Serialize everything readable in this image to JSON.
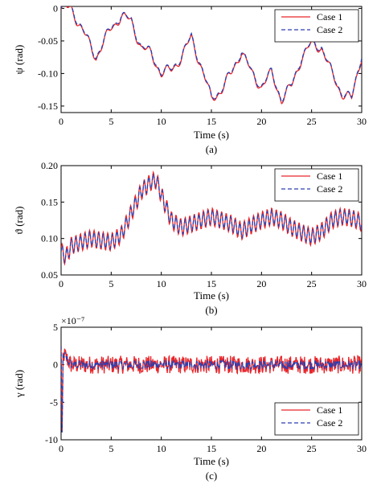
{
  "colors": {
    "case1": "#e8262b",
    "case2": "#2b3fb0"
  },
  "chart_data": [
    {
      "type": "line",
      "caption": "(a)",
      "xlabel": "Time (s)",
      "ylabel": "ψ (rad)",
      "xlim": [
        0,
        30
      ],
      "ylim": [
        -0.16,
        0.003
      ],
      "xticks": [
        "0",
        "5",
        "10",
        "15",
        "20",
        "25",
        "30"
      ],
      "yticks": [
        "0",
        "-0.05",
        "-0.10",
        "-0.15"
      ],
      "ytick_values": [
        0,
        -0.05,
        -0.1,
        -0.15
      ],
      "exponent": "",
      "legend_position": "top-right",
      "series": [
        {
          "name": "Case 1"
        },
        {
          "name": "Case 2"
        }
      ],
      "x": [
        0,
        1,
        2,
        3,
        3.5,
        4,
        5,
        6,
        7,
        8,
        9,
        10,
        11,
        12,
        13,
        14,
        15,
        16,
        17,
        18,
        19,
        20,
        21,
        22,
        23,
        24,
        25,
        26,
        27,
        28,
        29,
        30
      ],
      "values": [
        -0.002,
        0.001,
        -0.03,
        -0.06,
        -0.075,
        -0.06,
        -0.03,
        -0.012,
        -0.02,
        -0.06,
        -0.07,
        -0.1,
        -0.095,
        -0.075,
        -0.045,
        -0.09,
        -0.14,
        -0.125,
        -0.1,
        -0.065,
        -0.1,
        -0.12,
        -0.1,
        -0.14,
        -0.12,
        -0.075,
        -0.055,
        -0.06,
        -0.1,
        -0.13,
        -0.14,
        -0.07
      ]
    },
    {
      "type": "line",
      "caption": "(b)",
      "xlabel": "Time (s)",
      "ylabel": "ϑ (rad)",
      "xlim": [
        0,
        30
      ],
      "ylim": [
        0.05,
        0.2
      ],
      "xticks": [
        "0",
        "5",
        "10",
        "15",
        "20",
        "25",
        "30"
      ],
      "yticks": [
        "0.20",
        "0.15",
        "0.10",
        "0.05"
      ],
      "ytick_values": [
        0.2,
        0.15,
        0.1,
        0.05
      ],
      "exponent": "",
      "legend_position": "top-right",
      "series": [
        {
          "name": "Case 1"
        },
        {
          "name": "Case 2"
        }
      ],
      "x": [
        0,
        0.5,
        1,
        2,
        3,
        4,
        5,
        6,
        7,
        8,
        9,
        9.5,
        10,
        11,
        12,
        13,
        14,
        15,
        16,
        17,
        18,
        19,
        20,
        21,
        22,
        23,
        24,
        25,
        26,
        27,
        28,
        29,
        30
      ],
      "values": [
        0.082,
        0.075,
        0.09,
        0.095,
        0.1,
        0.097,
        0.095,
        0.105,
        0.135,
        0.165,
        0.178,
        0.18,
        0.16,
        0.125,
        0.115,
        0.12,
        0.125,
        0.13,
        0.125,
        0.12,
        0.11,
        0.118,
        0.125,
        0.13,
        0.125,
        0.115,
        0.108,
        0.102,
        0.11,
        0.125,
        0.13,
        0.128,
        0.122
      ]
    },
    {
      "type": "line",
      "caption": "(c)",
      "xlabel": "Time (s)",
      "ylabel": "γ (rad)",
      "xlim": [
        0,
        30
      ],
      "ylim": [
        -10,
        5
      ],
      "xticks": [
        "0",
        "5",
        "10",
        "15",
        "20",
        "25",
        "30"
      ],
      "yticks": [
        "5",
        "0",
        "-5",
        "-10"
      ],
      "ytick_values": [
        5,
        0,
        -5,
        -10
      ],
      "exponent": "×10⁻⁷",
      "legend_position": "bottom-right",
      "series": [
        {
          "name": "Case 1"
        },
        {
          "name": "Case 2"
        }
      ],
      "x": [
        0,
        0.1,
        0.2,
        1,
        5,
        10,
        15,
        20,
        25,
        30
      ],
      "values": [
        2.5,
        -9,
        1.5,
        0,
        0,
        0,
        0,
        0,
        0,
        0
      ],
      "noise_amplitude": 1.0
    }
  ]
}
